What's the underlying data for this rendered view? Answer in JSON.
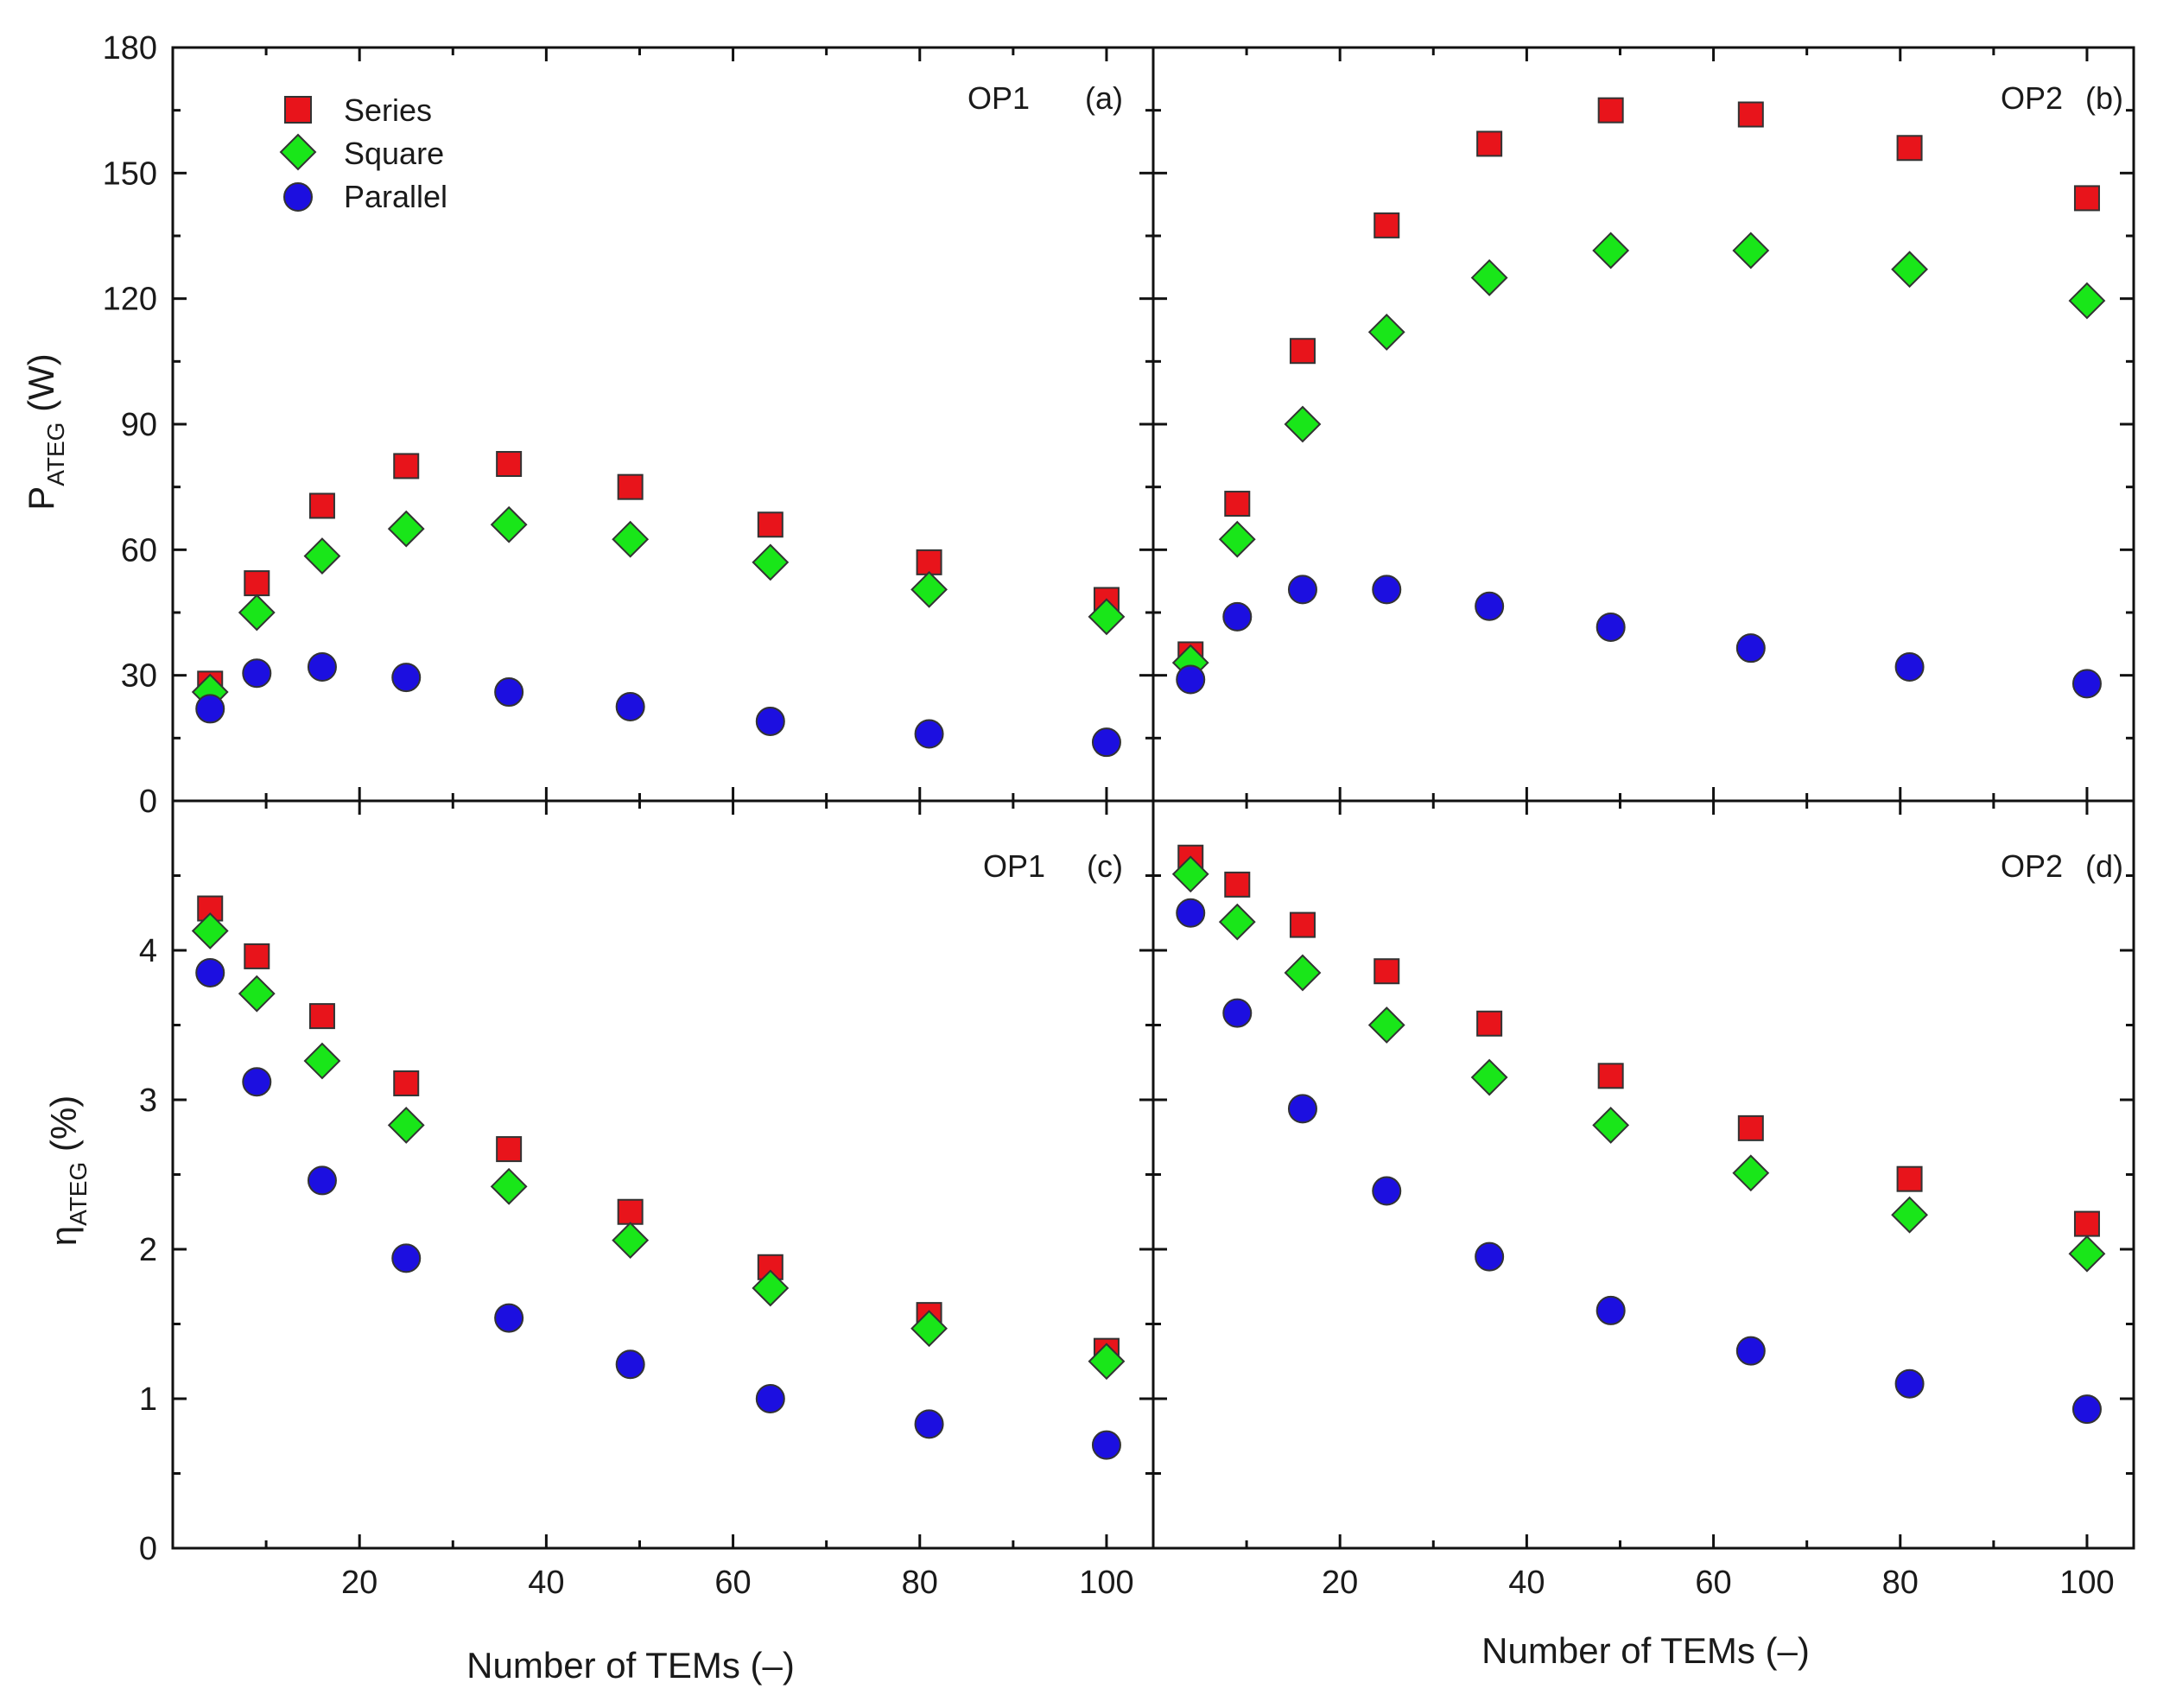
{
  "chart_data": [
    {
      "id": "a",
      "type": "scatter",
      "panel_label": "(a)",
      "condition": "OP1",
      "ylabel_main": "P",
      "ylabel_sub": "ATEG",
      "ylabel_unit": " (W)",
      "xlabel": "",
      "xlim": [
        0,
        105
      ],
      "ylim": [
        0,
        180
      ],
      "yticks": [
        "0",
        "30",
        "60",
        "90",
        "120",
        "150",
        "180"
      ],
      "x": [
        4,
        9,
        16,
        25,
        36,
        49,
        64,
        81,
        100
      ],
      "series": [
        {
          "name": "Series",
          "values": [
            28,
            52,
            70.5,
            80,
            80.5,
            75,
            66,
            57,
            48
          ]
        },
        {
          "name": "Square",
          "values": [
            26,
            45,
            58.5,
            65,
            66,
            62.5,
            57,
            50.5,
            44
          ]
        },
        {
          "name": "Parallel",
          "values": [
            22,
            30.5,
            32,
            29.5,
            26,
            22.5,
            19,
            16,
            14
          ]
        }
      ]
    },
    {
      "id": "b",
      "type": "scatter",
      "panel_label": "(b)",
      "condition": "OP2",
      "xlabel": "",
      "xlim": [
        0,
        105
      ],
      "ylim": [
        0,
        180
      ],
      "x": [
        4,
        9,
        16,
        25,
        36,
        49,
        64,
        81,
        100
      ],
      "series": [
        {
          "name": "Series",
          "values": [
            35,
            71,
            107.5,
            137.5,
            157,
            165,
            164,
            156,
            144
          ]
        },
        {
          "name": "Square",
          "values": [
            33,
            62.5,
            90,
            112,
            125,
            131.5,
            131.5,
            127,
            119.5
          ]
        },
        {
          "name": "Parallel",
          "values": [
            29,
            44,
            50.5,
            50.5,
            46.5,
            41.5,
            36.5,
            32,
            28
          ]
        }
      ]
    },
    {
      "id": "c",
      "type": "scatter",
      "panel_label": "(c)",
      "condition": "OP1",
      "ylabel_main": "η",
      "ylabel_sub": "ATEG",
      "ylabel_unit": " (%)",
      "xlabel": "Number of TEMs (–)",
      "xlim": [
        0,
        105
      ],
      "ylim": [
        0,
        5
      ],
      "xticks": [
        "20",
        "40",
        "60",
        "80",
        "100"
      ],
      "yticks": [
        "0",
        "1",
        "2",
        "3",
        "4"
      ],
      "x": [
        4,
        9,
        16,
        25,
        36,
        49,
        64,
        81,
        100
      ],
      "series": [
        {
          "name": "Series",
          "values": [
            4.28,
            3.96,
            3.56,
            3.11,
            2.67,
            2.25,
            1.88,
            1.56,
            1.32
          ]
        },
        {
          "name": "Square",
          "values": [
            4.13,
            3.71,
            3.26,
            2.83,
            2.42,
            2.06,
            1.74,
            1.47,
            1.25
          ]
        },
        {
          "name": "Parallel",
          "values": [
            3.85,
            3.12,
            2.46,
            1.94,
            1.54,
            1.23,
            1.0,
            0.83,
            0.69
          ]
        }
      ]
    },
    {
      "id": "d",
      "type": "scatter",
      "panel_label": "(d)",
      "condition": "OP2",
      "xlabel": "Number of TEMs (–)",
      "xlim": [
        0,
        105
      ],
      "ylim": [
        0,
        5
      ],
      "xticks": [
        "20",
        "40",
        "60",
        "80",
        "100"
      ],
      "x": [
        4,
        9,
        16,
        25,
        36,
        49,
        64,
        81,
        100
      ],
      "series": [
        {
          "name": "Series",
          "values": [
            4.62,
            4.44,
            4.17,
            3.86,
            3.51,
            3.16,
            2.81,
            2.47,
            2.17
          ]
        },
        {
          "name": "Square",
          "values": [
            4.51,
            4.19,
            3.85,
            3.5,
            3.15,
            2.83,
            2.51,
            2.23,
            1.97
          ]
        },
        {
          "name": "Parallel",
          "values": [
            4.25,
            3.58,
            2.94,
            2.39,
            1.95,
            1.59,
            1.32,
            1.1,
            0.93
          ]
        }
      ]
    }
  ],
  "legend": {
    "items": [
      {
        "name": "Series",
        "marker": "square",
        "color": "#e8141b"
      },
      {
        "name": "Square",
        "marker": "diamond",
        "color": "#19e619"
      },
      {
        "name": "Parallel",
        "marker": "circle",
        "color": "#1c0fe0"
      }
    ]
  }
}
